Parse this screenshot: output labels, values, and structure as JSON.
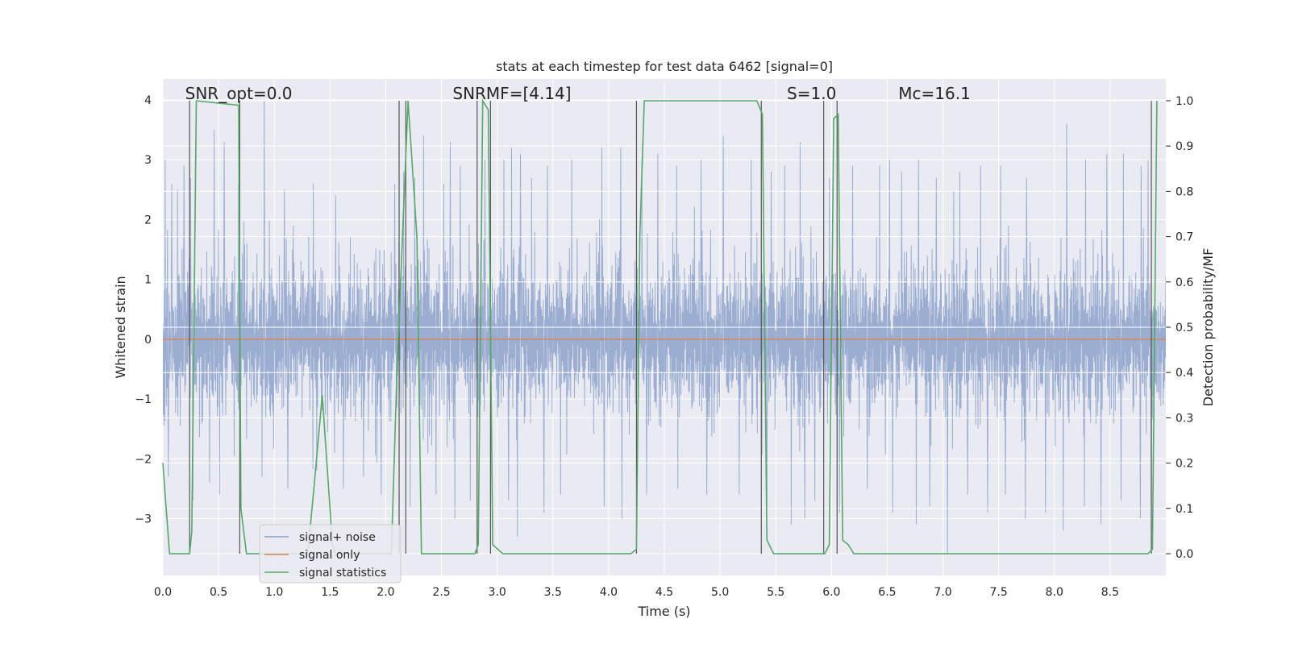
{
  "chart_data": {
    "type": "line",
    "title": "stats at each timestep for test data 6462 [signal=0]",
    "xlabel": "Time (s)",
    "ylabel": "Whitened strain",
    "y2label": "Detection probability/MF",
    "xlim": [
      0,
      9.0
    ],
    "ylim": [
      -3.95,
      4.35
    ],
    "y2lim": [
      -0.048,
      1.048
    ],
    "x_ticks": [
      0.0,
      0.5,
      1.0,
      1.5,
      2.0,
      2.5,
      3.0,
      3.5,
      4.0,
      4.5,
      5.0,
      5.5,
      6.0,
      6.5,
      7.0,
      7.5,
      8.0,
      8.5
    ],
    "x_tick_labels": [
      "0.0",
      "0.5",
      "1.0",
      "1.5",
      "2.0",
      "2.5",
      "3.0",
      "3.5",
      "4.0",
      "4.5",
      "5.0",
      "5.5",
      "6.0",
      "6.5",
      "7.0",
      "7.5",
      "8.0",
      "8.5"
    ],
    "y_ticks": [
      4,
      3,
      2,
      1,
      0,
      -1,
      -2,
      -3
    ],
    "y_tick_labels": [
      "4",
      "3",
      "2",
      "1",
      "0",
      "−1",
      "−2",
      "−3"
    ],
    "y2_ticks": [
      1.0,
      0.9,
      0.8,
      0.7,
      0.6,
      0.5,
      0.4,
      0.3,
      0.2,
      0.1,
      0.0
    ],
    "y2_tick_labels": [
      "1.0",
      "0.9",
      "0.8",
      "0.7",
      "0.6",
      "0.5",
      "0.4",
      "0.3",
      "0.2",
      "0.1",
      "0.0"
    ],
    "grid": true,
    "legend_position": "lower-left",
    "annotations": [
      {
        "text": "SNR_opt=0.0",
        "x": 0.2
      },
      {
        "text": "SNRMF=[4.14]",
        "x": 2.6
      },
      {
        "text": "S=1.0",
        "x": 5.6
      },
      {
        "text": "Mc=16.1",
        "x": 6.6
      }
    ],
    "series": [
      {
        "name": "signal+ noise",
        "color": "#4c72b0",
        "axis": "left",
        "kind": "noise",
        "envelope": {
          "typical_high": 2.3,
          "typical_low": -2.1,
          "max": 4.0,
          "min": -3.6
        },
        "spikes": [
          [
            0.02,
            3.0
          ],
          [
            0.08,
            2.6
          ],
          [
            0.13,
            2.5
          ],
          [
            0.19,
            2.9
          ],
          [
            0.25,
            2.7
          ],
          [
            0.46,
            3.5
          ],
          [
            0.55,
            3.3
          ],
          [
            0.68,
            2.6
          ],
          [
            0.91,
            4.0
          ],
          [
            1.09,
            2.5
          ],
          [
            1.35,
            2.6
          ],
          [
            1.55,
            2.4
          ],
          [
            2.08,
            2.6
          ],
          [
            2.16,
            2.8
          ],
          [
            2.26,
            2.7
          ],
          [
            2.34,
            3.4
          ],
          [
            2.52,
            2.6
          ],
          [
            2.58,
            3.3
          ],
          [
            2.67,
            2.9
          ],
          [
            2.89,
            3.0
          ],
          [
            3.06,
            3.0
          ],
          [
            3.13,
            3.2
          ],
          [
            3.21,
            3.1
          ],
          [
            3.31,
            2.7
          ],
          [
            3.45,
            2.9
          ],
          [
            3.67,
            3.0
          ],
          [
            3.94,
            3.2
          ],
          [
            4.11,
            3.2
          ],
          [
            4.3,
            3.0
          ],
          [
            4.44,
            3.1
          ],
          [
            4.61,
            2.9
          ],
          [
            4.83,
            3.0
          ],
          [
            5.03,
            3.4
          ],
          [
            5.28,
            3.0
          ],
          [
            5.46,
            2.8
          ],
          [
            5.58,
            2.9
          ],
          [
            5.72,
            3.3
          ],
          [
            5.98,
            2.7
          ],
          [
            6.19,
            2.9
          ],
          [
            6.32,
            3.1
          ],
          [
            6.43,
            2.9
          ],
          [
            6.52,
            3.0
          ],
          [
            6.63,
            2.8
          ],
          [
            6.78,
            3.0
          ],
          [
            6.94,
            2.7
          ],
          [
            7.15,
            2.8
          ],
          [
            7.34,
            2.9
          ],
          [
            7.52,
            2.9
          ],
          [
            7.75,
            2.7
          ],
          [
            7.92,
            3.0
          ],
          [
            8.11,
            3.6
          ],
          [
            8.28,
            3.0
          ],
          [
            8.47,
            3.1
          ],
          [
            8.62,
            3.1
          ],
          [
            8.78,
            2.9
          ],
          [
            8.84,
            3.0
          ],
          [
            0.05,
            -2.3
          ],
          [
            0.27,
            -2.7
          ],
          [
            0.42,
            -2.4
          ],
          [
            0.51,
            -2.6
          ],
          [
            0.89,
            -2.3
          ],
          [
            1.12,
            -2.5
          ],
          [
            1.38,
            -2.2
          ],
          [
            1.62,
            -2.5
          ],
          [
            1.8,
            -2.3
          ],
          [
            1.96,
            -2.6
          ],
          [
            2.22,
            -2.8
          ],
          [
            2.45,
            -2.6
          ],
          [
            2.62,
            -3.0
          ],
          [
            2.76,
            -2.7
          ],
          [
            3.1,
            -2.7
          ],
          [
            3.18,
            -3.3
          ],
          [
            3.42,
            -2.9
          ],
          [
            3.57,
            -2.6
          ],
          [
            3.96,
            -2.8
          ],
          [
            4.12,
            -3.0
          ],
          [
            4.34,
            -2.6
          ],
          [
            4.62,
            -2.5
          ],
          [
            4.88,
            -2.6
          ],
          [
            5.17,
            -2.6
          ],
          [
            5.42,
            -2.8
          ],
          [
            5.64,
            -3.1
          ],
          [
            5.76,
            -3.0
          ],
          [
            5.85,
            -2.7
          ],
          [
            6.07,
            -2.9
          ],
          [
            6.32,
            -2.5
          ],
          [
            6.55,
            -2.9
          ],
          [
            6.76,
            -3.1
          ],
          [
            6.88,
            -2.8
          ],
          [
            7.04,
            -3.6
          ],
          [
            7.22,
            -2.6
          ],
          [
            7.4,
            -2.9
          ],
          [
            7.56,
            -2.6
          ],
          [
            7.74,
            -3.0
          ],
          [
            7.92,
            -2.9
          ],
          [
            8.08,
            -3.2
          ],
          [
            8.27,
            -2.8
          ],
          [
            8.42,
            -3.1
          ],
          [
            8.6,
            -2.7
          ],
          [
            8.77,
            -3.0
          ],
          [
            8.87,
            -3.2
          ]
        ]
      },
      {
        "name": "signal only",
        "color": "#dd8452",
        "axis": "left",
        "x": [
          0.0,
          9.0
        ],
        "y": [
          0.0,
          0.0
        ]
      },
      {
        "name": "signal statistics",
        "color": "#55a868",
        "axis": "right",
        "x": [
          0.0,
          0.03,
          0.06,
          0.24,
          0.26,
          0.3,
          0.68,
          0.7,
          0.75,
          1.3,
          1.35,
          1.43,
          1.5,
          1.52,
          1.55,
          2.05,
          2.1,
          2.2,
          2.28,
          2.32,
          2.8,
          2.83,
          2.87,
          2.92,
          2.96,
          3.05,
          4.2,
          4.25,
          4.28,
          4.32,
          5.33,
          5.38,
          5.42,
          5.48,
          5.94,
          5.98,
          6.02,
          6.06,
          6.1,
          6.15,
          6.2,
          8.5,
          8.84,
          8.88,
          8.92
        ],
        "y": [
          0.2,
          0.1,
          0.0,
          0.0,
          0.05,
          1.0,
          0.99,
          0.1,
          0.0,
          0.0,
          0.13,
          0.35,
          0.1,
          0.02,
          0.0,
          0.0,
          0.4,
          1.0,
          0.7,
          0.0,
          0.0,
          0.02,
          1.0,
          0.98,
          0.02,
          0.0,
          0.0,
          0.01,
          0.7,
          1.0,
          1.0,
          0.97,
          0.03,
          0.0,
          0.0,
          0.02,
          0.96,
          0.97,
          0.03,
          0.02,
          0.0,
          0.0,
          0.0,
          0.01,
          1.0
        ]
      }
    ],
    "vertical_lines": [
      0.24,
      0.69,
      2.12,
      2.18,
      2.82,
      2.94,
      4.25,
      5.37,
      5.93,
      6.05,
      8.87
    ]
  }
}
